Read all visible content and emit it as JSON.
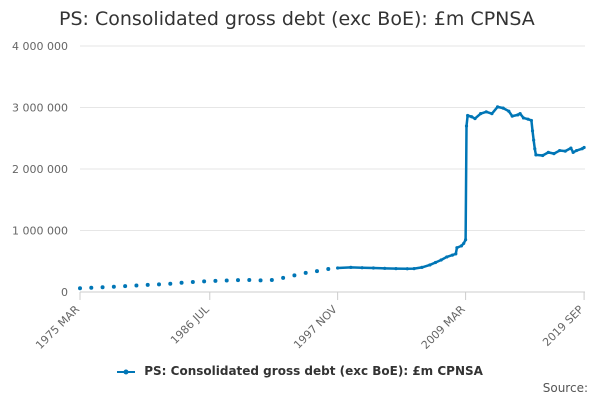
{
  "chart_data": {
    "type": "line",
    "title": "PS: Consolidated gross debt (exc BoE): £m CPNSA",
    "xlabel": "",
    "ylabel": "",
    "ylim": [
      0,
      4000000
    ],
    "yticks": [
      0,
      1000000,
      2000000,
      3000000,
      4000000
    ],
    "ytick_labels": [
      "0",
      "1 000 000",
      "2 000 000",
      "3 000 000",
      "4 000 000"
    ],
    "xlim": [
      1975.0,
      2019.75
    ],
    "xticks": [
      1975.0,
      1986.5,
      1997.83,
      2009.17,
      2019.67
    ],
    "xtick_labels": [
      "1975 MAR",
      "1986 JUL",
      "1997 NOV",
      "2009 MAR",
      "2019 SEP"
    ],
    "grid": "horizontal",
    "legend_position": "bottom",
    "color": "#0076b6",
    "series": [
      {
        "name": "PS: Consolidated gross debt (exc BoE): £m CPNSA",
        "annual": [
          [
            1975.0,
            60000
          ],
          [
            1976.0,
            70000
          ],
          [
            1977.0,
            78000
          ],
          [
            1978.0,
            85000
          ],
          [
            1979.0,
            95000
          ],
          [
            1980.0,
            105000
          ],
          [
            1981.0,
            115000
          ],
          [
            1982.0,
            125000
          ],
          [
            1983.0,
            135000
          ],
          [
            1984.0,
            150000
          ],
          [
            1985.0,
            162000
          ],
          [
            1986.0,
            172000
          ],
          [
            1987.0,
            180000
          ],
          [
            1988.0,
            188000
          ],
          [
            1989.0,
            193000
          ],
          [
            1990.0,
            195000
          ],
          [
            1991.0,
            190000
          ],
          [
            1992.0,
            195000
          ],
          [
            1993.0,
            230000
          ],
          [
            1994.0,
            270000
          ],
          [
            1995.0,
            310000
          ],
          [
            1996.0,
            340000
          ],
          [
            1997.0,
            375000
          ]
        ],
        "monthly_path": [
          [
            1997.83,
            390000
          ],
          [
            1999.0,
            400000
          ],
          [
            2000.0,
            395000
          ],
          [
            2001.0,
            390000
          ],
          [
            2002.0,
            385000
          ],
          [
            2003.0,
            380000
          ],
          [
            2004.0,
            378000
          ],
          [
            2004.6,
            380000
          ],
          [
            2005.3,
            400000
          ],
          [
            2006.0,
            440000
          ],
          [
            2006.5,
            480000
          ],
          [
            2007.0,
            520000
          ],
          [
            2007.5,
            570000
          ],
          [
            2008.0,
            600000
          ],
          [
            2008.3,
            620000
          ],
          [
            2008.4,
            720000
          ],
          [
            2008.8,
            750000
          ],
          [
            2009.0,
            790000
          ],
          [
            2009.17,
            850000
          ],
          [
            2009.25,
            2700000
          ],
          [
            2009.35,
            2870000
          ],
          [
            2009.7,
            2850000
          ],
          [
            2010.0,
            2820000
          ],
          [
            2010.5,
            2900000
          ],
          [
            2011.0,
            2930000
          ],
          [
            2011.5,
            2900000
          ],
          [
            2012.0,
            3010000
          ],
          [
            2012.5,
            2990000
          ],
          [
            2013.0,
            2940000
          ],
          [
            2013.3,
            2860000
          ],
          [
            2013.8,
            2880000
          ],
          [
            2014.0,
            2900000
          ],
          [
            2014.3,
            2830000
          ],
          [
            2014.7,
            2810000
          ],
          [
            2015.0,
            2790000
          ],
          [
            2015.1,
            2620000
          ],
          [
            2015.2,
            2470000
          ],
          [
            2015.3,
            2330000
          ],
          [
            2015.4,
            2230000
          ],
          [
            2016.0,
            2220000
          ],
          [
            2016.5,
            2270000
          ],
          [
            2017.0,
            2250000
          ],
          [
            2017.5,
            2300000
          ],
          [
            2018.0,
            2290000
          ],
          [
            2018.5,
            2340000
          ],
          [
            2018.7,
            2270000
          ],
          [
            2019.0,
            2300000
          ],
          [
            2019.5,
            2330000
          ],
          [
            2019.67,
            2350000
          ]
        ]
      }
    ]
  },
  "legend": {
    "label": "PS: Consolidated gross debt (exc BoE): £m CPNSA"
  },
  "source_label": "Source:"
}
